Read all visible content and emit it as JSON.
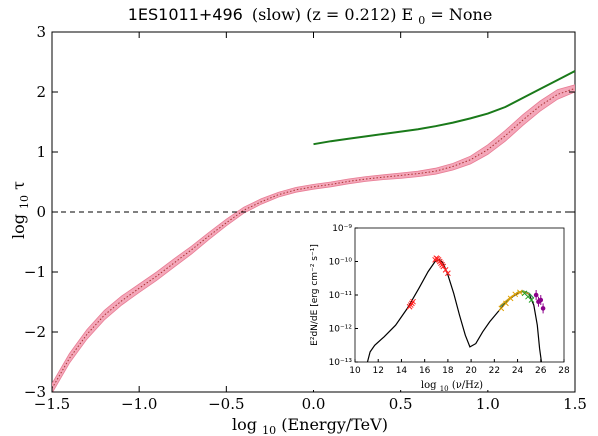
{
  "chart_data": [
    {
      "type": "line",
      "title": "1ES1011+496 (slow) (z = 0.212) E_0 = None",
      "title_parts": {
        "source": "1ES1011+496",
        "rest": "(slow) (z = 0.212) E",
        "sub": "0",
        "tail": " = None"
      },
      "xlabel": "log10 (Energy/TeV)",
      "xlabel_parts": {
        "pre": "log",
        "sub": "10",
        "post": " (Energy/TeV)"
      },
      "ylabel": "log10 τ",
      "ylabel_parts": {
        "pre": "log",
        "sub": "10",
        "post": " τ"
      },
      "xlim": [
        -1.5,
        1.5
      ],
      "ylim": [
        -3,
        3
      ],
      "x_ticks": [
        "−1.5",
        "−1.0",
        "−0.5",
        "0.0",
        "0.5",
        "1.0",
        "1.5"
      ],
      "y_ticks": [
        "−3",
        "−2",
        "−1",
        "0",
        "1",
        "2",
        "3"
      ],
      "reference_line": {
        "y": 0,
        "style": "dashed",
        "color": "#000000"
      },
      "series": [
        {
          "kind": "band",
          "color": "#f4a7b9",
          "edge_color": "#e87d95",
          "x": [
            -1.5,
            -1.4,
            -1.3,
            -1.2,
            -1.1,
            -1.0,
            -0.9,
            -0.8,
            -0.7,
            -0.6,
            -0.5,
            -0.4,
            -0.3,
            -0.2,
            -0.1,
            0.0,
            0.1,
            0.2,
            0.3,
            0.4,
            0.5,
            0.6,
            0.7,
            0.8,
            0.9,
            1.0,
            1.1,
            1.2,
            1.3,
            1.4,
            1.5
          ],
          "lower": [
            -3.02,
            -2.52,
            -2.12,
            -1.8,
            -1.55,
            -1.34,
            -1.14,
            -0.92,
            -0.7,
            -0.46,
            -0.23,
            -0.02,
            0.13,
            0.25,
            0.33,
            0.38,
            0.42,
            0.47,
            0.51,
            0.54,
            0.56,
            0.59,
            0.63,
            0.7,
            0.8,
            0.96,
            1.18,
            1.44,
            1.68,
            1.88,
            2.0
          ],
          "upper": [
            -2.86,
            -2.36,
            -1.96,
            -1.64,
            -1.4,
            -1.2,
            -1.0,
            -0.78,
            -0.57,
            -0.34,
            -0.12,
            0.08,
            0.22,
            0.33,
            0.41,
            0.46,
            0.5,
            0.55,
            0.59,
            0.62,
            0.65,
            0.68,
            0.73,
            0.81,
            0.93,
            1.12,
            1.36,
            1.62,
            1.85,
            2.04,
            2.12
          ]
        },
        {
          "kind": "line",
          "style": "dotted",
          "color": "#a33",
          "x": [
            -1.5,
            -1.4,
            -1.3,
            -1.2,
            -1.1,
            -1.0,
            -0.9,
            -0.8,
            -0.7,
            -0.6,
            -0.5,
            -0.4,
            -0.3,
            -0.2,
            -0.1,
            0.0,
            0.1,
            0.2,
            0.3,
            0.4,
            0.5,
            0.6,
            0.7,
            0.8,
            0.9,
            1.0,
            1.1,
            1.2,
            1.3,
            1.4,
            1.5
          ],
          "y": [
            -2.94,
            -2.44,
            -2.04,
            -1.72,
            -1.48,
            -1.27,
            -1.07,
            -0.85,
            -0.63,
            -0.4,
            -0.18,
            0.03,
            0.17,
            0.29,
            0.37,
            0.42,
            0.46,
            0.51,
            0.55,
            0.58,
            0.61,
            0.64,
            0.68,
            0.76,
            0.87,
            1.04,
            1.27,
            1.53,
            1.77,
            1.96,
            2.06
          ]
        },
        {
          "kind": "line",
          "style": "solid",
          "color": "#1a7a1a",
          "x": [
            0.0,
            0.1,
            0.2,
            0.3,
            0.4,
            0.5,
            0.6,
            0.7,
            0.8,
            0.9,
            1.0,
            1.1,
            1.2,
            1.3,
            1.4,
            1.5
          ],
          "y": [
            1.13,
            1.18,
            1.22,
            1.26,
            1.3,
            1.34,
            1.38,
            1.43,
            1.49,
            1.56,
            1.64,
            1.75,
            1.9,
            2.05,
            2.2,
            2.35
          ]
        }
      ]
    },
    {
      "type": "scatter",
      "inset": true,
      "xlabel": "log10 (ν/Hz)",
      "xlabel_parts": {
        "pre": "log",
        "sub": "10",
        "post": " (ν/Hz)"
      },
      "ylabel": "E²dN/dE [erg cm⁻² s⁻¹]",
      "xlim": [
        10,
        28
      ],
      "ylim_log10": [
        -13,
        -9
      ],
      "y_scale": "log",
      "x_ticks": [
        "10",
        "12",
        "14",
        "16",
        "18",
        "20",
        "22",
        "24",
        "26",
        "28"
      ],
      "y_ticks": [
        "10⁻¹³",
        "10⁻¹²",
        "10⁻¹¹",
        "10⁻¹⁰",
        "10⁻⁹"
      ],
      "model_curve": {
        "color": "#000000",
        "x": [
          11.0,
          11.3,
          11.7,
          12.5,
          13.5,
          14.5,
          15.5,
          16.3,
          16.9,
          17.3,
          17.6,
          18.0,
          18.5,
          19.0,
          19.5,
          19.9,
          20.4,
          21.0,
          21.6,
          22.2,
          22.8,
          23.4,
          24.0,
          24.5,
          25.0,
          25.4,
          25.7,
          25.9,
          26.1
        ],
        "log10_y": [
          -13.1,
          -12.7,
          -12.5,
          -12.25,
          -11.9,
          -11.4,
          -10.8,
          -10.3,
          -10.0,
          -9.95,
          -10.05,
          -10.4,
          -10.95,
          -11.6,
          -12.2,
          -12.55,
          -12.45,
          -12.1,
          -11.8,
          -11.55,
          -11.3,
          -11.1,
          -10.95,
          -10.9,
          -10.98,
          -11.3,
          -11.9,
          -12.6,
          -13.1
        ]
      },
      "fit_curves": [
        {
          "color": "#2e8b57",
          "x": [
            22.5,
            23.0,
            23.5,
            24.0,
            24.5,
            25.0,
            25.4
          ],
          "log10_y": [
            -11.35,
            -11.2,
            -11.05,
            -10.92,
            -10.88,
            -10.95,
            -11.1
          ]
        },
        {
          "color": "#d4a017",
          "x": [
            22.5,
            23.0,
            23.5,
            24.0,
            24.5,
            25.0
          ],
          "log10_y": [
            -11.32,
            -11.18,
            -11.04,
            -10.93,
            -10.9,
            -10.97
          ]
        }
      ],
      "points": [
        {
          "group": "optical",
          "color": "#ff2020",
          "marker": "x",
          "x": [
            14.7,
            14.8,
            14.9,
            15.0
          ],
          "log10_y": [
            -11.35,
            -11.3,
            -11.25,
            -11.2
          ]
        },
        {
          "group": "xray",
          "color": "#ff2020",
          "marker": "x",
          "x": [
            16.9,
            17.0,
            17.1,
            17.2,
            17.3,
            17.4,
            17.5,
            17.6,
            17.8,
            18.0
          ],
          "log10_y": [
            -9.95,
            -9.9,
            -9.92,
            -9.95,
            -10.0,
            -10.05,
            -10.1,
            -10.15,
            -10.25,
            -10.35
          ]
        },
        {
          "group": "fermi",
          "color": "#e0a000",
          "marker": "x",
          "x": [
            22.6,
            23.0,
            23.4,
            23.8,
            24.2
          ],
          "log10_y": [
            -11.4,
            -11.25,
            -11.1,
            -10.98,
            -10.92
          ]
        },
        {
          "group": "hess-green",
          "color": "#1fa01f",
          "marker": "x",
          "x": [
            24.6,
            24.9,
            25.2
          ],
          "log10_y": [
            -10.95,
            -11.05,
            -11.15
          ]
        },
        {
          "group": "vhe",
          "color": "#8b008b",
          "marker": "o",
          "x": [
            25.6,
            25.8,
            26.0,
            26.2
          ],
          "log10_y": [
            -11.0,
            -11.2,
            -11.15,
            -11.4
          ]
        }
      ]
    }
  ]
}
